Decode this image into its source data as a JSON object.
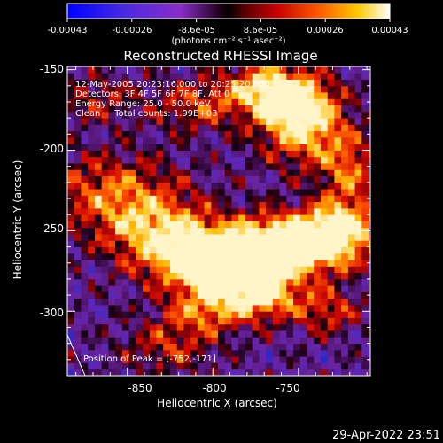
{
  "colorbar": {
    "ticks": [
      "-0.00043",
      "-0.00026",
      "-8.6e-05",
      "8.6e-05",
      "0.00026",
      "0.00043"
    ],
    "unit_label": "(photons cm⁻² s⁻¹ asec⁻²)",
    "range": [
      -0.00043,
      0.00043
    ]
  },
  "chart_data": {
    "type": "heatmap",
    "title": "Reconstructed RHESSI Image",
    "xlabel": "Heliocentric X (arcsec)",
    "ylabel": "Heliocentric Y (arcsec)",
    "xlim": [
      -885,
      -708
    ],
    "ylim": [
      -340,
      -148
    ],
    "x_ticks": [
      "-850",
      "-800",
      "-750"
    ],
    "y_ticks": [
      "-150",
      "-200",
      "-250",
      "-300"
    ],
    "info_lines": [
      "12-May-2005 20:23:16.000 to 20:25:20.000",
      "Detectors: 3F 4F 5F 6F 7F 8F, Att 0",
      "Energy Range: 25.0 - 50.0 keV",
      "Clean     Total counts: 1.99E+03"
    ],
    "peak_label": "Position of Peak = [-752,-171]",
    "peak": [
      -752,
      -171
    ],
    "colormap": "blue-purple-black-red-orange-yellow-white"
  },
  "timestamp": "29-Apr-2022 23:51"
}
